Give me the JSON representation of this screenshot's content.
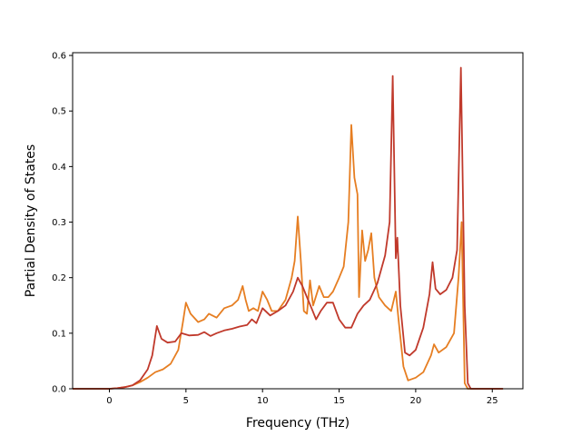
{
  "chart_data": {
    "type": "line",
    "title": "",
    "xlabel": "Frequency (THz)",
    "ylabel": "Partial Density of States",
    "xlim": [
      -2.4,
      27
    ],
    "ylim": [
      0,
      0.605
    ],
    "grid": false,
    "legend": "none",
    "x_ticks": [
      0,
      5,
      10,
      15,
      20,
      25
    ],
    "x_tick_labels": [
      "0",
      "5",
      "10",
      "15",
      "20",
      "25"
    ],
    "y_ticks": [
      0.0,
      0.1,
      0.2,
      0.3,
      0.4,
      0.5,
      0.6
    ],
    "y_tick_labels": [
      "0.0",
      "0.1",
      "0.2",
      "0.3",
      "0.4",
      "0.5",
      "0.6"
    ],
    "series": [
      {
        "color": "#e67e22",
        "points": [
          [
            -2.4,
            0
          ],
          [
            0,
            0
          ],
          [
            0.5,
            0.001
          ],
          [
            1,
            0.003
          ],
          [
            1.5,
            0.006
          ],
          [
            2,
            0.012
          ],
          [
            2.5,
            0.02
          ],
          [
            3,
            0.03
          ],
          [
            3.5,
            0.035
          ],
          [
            4,
            0.045
          ],
          [
            4.5,
            0.07
          ],
          [
            4.8,
            0.12
          ],
          [
            5,
            0.155
          ],
          [
            5.3,
            0.135
          ],
          [
            5.8,
            0.12
          ],
          [
            6.2,
            0.125
          ],
          [
            6.5,
            0.135
          ],
          [
            7,
            0.128
          ],
          [
            7.5,
            0.145
          ],
          [
            8,
            0.15
          ],
          [
            8.4,
            0.16
          ],
          [
            8.7,
            0.185
          ],
          [
            8.9,
            0.16
          ],
          [
            9.1,
            0.14
          ],
          [
            9.4,
            0.145
          ],
          [
            9.7,
            0.14
          ],
          [
            10,
            0.175
          ],
          [
            10.3,
            0.16
          ],
          [
            10.6,
            0.14
          ],
          [
            11,
            0.14
          ],
          [
            11.5,
            0.16
          ],
          [
            11.9,
            0.2
          ],
          [
            12.1,
            0.23
          ],
          [
            12.3,
            0.31
          ],
          [
            12.5,
            0.23
          ],
          [
            12.7,
            0.14
          ],
          [
            12.9,
            0.135
          ],
          [
            13.1,
            0.195
          ],
          [
            13.3,
            0.15
          ],
          [
            13.7,
            0.185
          ],
          [
            14,
            0.165
          ],
          [
            14.3,
            0.165
          ],
          [
            14.6,
            0.175
          ],
          [
            15,
            0.2
          ],
          [
            15.3,
            0.22
          ],
          [
            15.6,
            0.3
          ],
          [
            15.8,
            0.475
          ],
          [
            16,
            0.38
          ],
          [
            16.2,
            0.35
          ],
          [
            16.3,
            0.165
          ],
          [
            16.5,
            0.285
          ],
          [
            16.7,
            0.23
          ],
          [
            16.9,
            0.25
          ],
          [
            17.1,
            0.28
          ],
          [
            17.3,
            0.2
          ],
          [
            17.6,
            0.165
          ],
          [
            18,
            0.15
          ],
          [
            18.4,
            0.14
          ],
          [
            18.7,
            0.175
          ],
          [
            18.9,
            0.12
          ],
          [
            19.2,
            0.04
          ],
          [
            19.5,
            0.015
          ],
          [
            20,
            0.02
          ],
          [
            20.5,
            0.03
          ],
          [
            21,
            0.06
          ],
          [
            21.2,
            0.08
          ],
          [
            21.5,
            0.065
          ],
          [
            22,
            0.075
          ],
          [
            22.5,
            0.1
          ],
          [
            22.8,
            0.2
          ],
          [
            23,
            0.3
          ],
          [
            23.2,
            0.01
          ],
          [
            23.4,
            0
          ],
          [
            25.7,
            0
          ]
        ]
      },
      {
        "color": "#c0392b",
        "points": [
          [
            -2.4,
            0
          ],
          [
            0,
            0
          ],
          [
            0.5,
            0.001
          ],
          [
            1,
            0.003
          ],
          [
            1.5,
            0.006
          ],
          [
            2,
            0.015
          ],
          [
            2.5,
            0.035
          ],
          [
            2.8,
            0.06
          ],
          [
            3.1,
            0.113
          ],
          [
            3.4,
            0.09
          ],
          [
            3.8,
            0.083
          ],
          [
            4.3,
            0.085
          ],
          [
            4.7,
            0.1
          ],
          [
            5.2,
            0.096
          ],
          [
            5.8,
            0.097
          ],
          [
            6.2,
            0.102
          ],
          [
            6.6,
            0.095
          ],
          [
            7,
            0.1
          ],
          [
            7.5,
            0.105
          ],
          [
            8,
            0.108
          ],
          [
            8.5,
            0.112
          ],
          [
            9,
            0.115
          ],
          [
            9.3,
            0.125
          ],
          [
            9.6,
            0.118
          ],
          [
            10,
            0.145
          ],
          [
            10.5,
            0.132
          ],
          [
            11,
            0.14
          ],
          [
            11.5,
            0.15
          ],
          [
            12,
            0.175
          ],
          [
            12.3,
            0.2
          ],
          [
            12.6,
            0.185
          ],
          [
            12.9,
            0.165
          ],
          [
            13.2,
            0.145
          ],
          [
            13.5,
            0.125
          ],
          [
            13.8,
            0.14
          ],
          [
            14.2,
            0.155
          ],
          [
            14.6,
            0.155
          ],
          [
            15,
            0.125
          ],
          [
            15.4,
            0.11
          ],
          [
            15.8,
            0.11
          ],
          [
            16.2,
            0.135
          ],
          [
            16.6,
            0.15
          ],
          [
            17,
            0.16
          ],
          [
            17.5,
            0.19
          ],
          [
            18,
            0.24
          ],
          [
            18.3,
            0.3
          ],
          [
            18.5,
            0.563
          ],
          [
            18.7,
            0.235
          ],
          [
            18.8,
            0.272
          ],
          [
            19,
            0.15
          ],
          [
            19.3,
            0.065
          ],
          [
            19.6,
            0.06
          ],
          [
            20,
            0.07
          ],
          [
            20.5,
            0.11
          ],
          [
            20.9,
            0.17
          ],
          [
            21.1,
            0.228
          ],
          [
            21.3,
            0.18
          ],
          [
            21.6,
            0.17
          ],
          [
            22,
            0.178
          ],
          [
            22.4,
            0.2
          ],
          [
            22.7,
            0.25
          ],
          [
            22.95,
            0.578
          ],
          [
            23.2,
            0.15
          ],
          [
            23.4,
            0.01
          ],
          [
            23.6,
            0
          ],
          [
            25.7,
            0
          ]
        ]
      }
    ]
  }
}
